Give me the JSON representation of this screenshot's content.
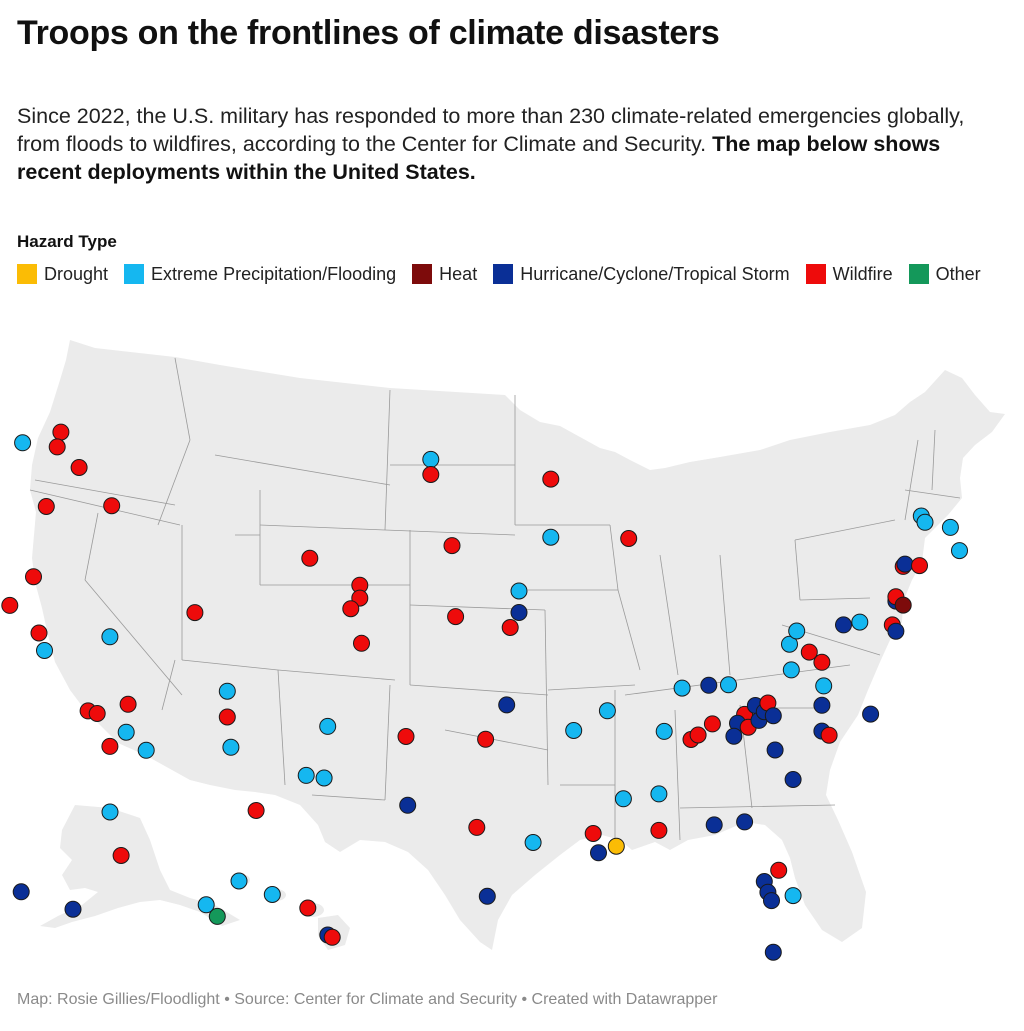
{
  "title": "Troops on the frontlines of climate disasters",
  "intro": {
    "text": "Since 2022, the U.S. military has responded to more than 230 climate-related emergencies globally, from floods to wildfires, according to the Center for Climate and Security. ",
    "bold": "The map below shows recent deployments within the United States."
  },
  "legend": {
    "title": "Hazard Type",
    "items": [
      {
        "key": "drought",
        "label": "Drought",
        "color": "#fbbc05"
      },
      {
        "key": "flood",
        "label": "Extreme Precipitation/Flooding",
        "color": "#15b7f0"
      },
      {
        "key": "heat",
        "label": "Heat",
        "color": "#7d0b0b"
      },
      {
        "key": "hurricane",
        "label": "Hurricane/Cyclone/Tropical Storm",
        "color": "#0a2f96"
      },
      {
        "key": "wildfire",
        "label": "Wildfire",
        "color": "#ee0b0b"
      },
      {
        "key": "other",
        "label": "Other",
        "color": "#14985a"
      }
    ]
  },
  "map": {
    "land_color": "#ebebeb",
    "border_color": "#9a9a9a",
    "points": [
      {
        "lon": -123.3,
        "lat": 48.2,
        "type": "flood"
      },
      {
        "lon": -121.2,
        "lat": 48.8,
        "type": "wildfire"
      },
      {
        "lon": -121.4,
        "lat": 48.1,
        "type": "wildfire"
      },
      {
        "lon": -120.2,
        "lat": 47.2,
        "type": "wildfire"
      },
      {
        "lon": -122.0,
        "lat": 45.3,
        "type": "wildfire"
      },
      {
        "lon": -118.4,
        "lat": 45.5,
        "type": "wildfire"
      },
      {
        "lon": -122.7,
        "lat": 42.0,
        "type": "wildfire"
      },
      {
        "lon": -124.0,
        "lat": 40.6,
        "type": "wildfire"
      },
      {
        "lon": -122.4,
        "lat": 39.4,
        "type": "wildfire"
      },
      {
        "lon": -122.1,
        "lat": 38.6,
        "type": "flood"
      },
      {
        "lon": -118.5,
        "lat": 39.4,
        "type": "flood"
      },
      {
        "lon": -119.7,
        "lat": 35.9,
        "type": "wildfire"
      },
      {
        "lon": -119.2,
        "lat": 35.8,
        "type": "wildfire"
      },
      {
        "lon": -117.5,
        "lat": 36.3,
        "type": "wildfire"
      },
      {
        "lon": -117.6,
        "lat": 35.0,
        "type": "flood"
      },
      {
        "lon": -118.5,
        "lat": 34.3,
        "type": "wildfire"
      },
      {
        "lon": -116.5,
        "lat": 34.2,
        "type": "flood"
      },
      {
        "lon": -112.0,
        "lat": 37.1,
        "type": "flood"
      },
      {
        "lon": -112.0,
        "lat": 35.9,
        "type": "wildfire"
      },
      {
        "lon": -111.8,
        "lat": 34.5,
        "type": "flood"
      },
      {
        "lon": -110.4,
        "lat": 31.6,
        "type": "wildfire"
      },
      {
        "lon": -113.8,
        "lat": 40.7,
        "type": "wildfire"
      },
      {
        "lon": -107.4,
        "lat": 43.4,
        "type": "wildfire"
      },
      {
        "lon": -104.6,
        "lat": 42.2,
        "type": "wildfire"
      },
      {
        "lon": -104.6,
        "lat": 41.6,
        "type": "wildfire"
      },
      {
        "lon": -105.1,
        "lat": 41.1,
        "type": "wildfire"
      },
      {
        "lon": -104.5,
        "lat": 39.5,
        "type": "wildfire"
      },
      {
        "lon": -100.6,
        "lat": 48.1,
        "type": "flood"
      },
      {
        "lon": -100.6,
        "lat": 47.4,
        "type": "wildfire"
      },
      {
        "lon": -99.4,
        "lat": 44.1,
        "type": "wildfire"
      },
      {
        "lon": -99.2,
        "lat": 40.8,
        "type": "wildfire"
      },
      {
        "lon": -95.6,
        "lat": 42.0,
        "type": "flood"
      },
      {
        "lon": -95.6,
        "lat": 41.0,
        "type": "hurricane"
      },
      {
        "lon": -96.1,
        "lat": 40.3,
        "type": "wildfire"
      },
      {
        "lon": -93.8,
        "lat": 47.2,
        "type": "wildfire"
      },
      {
        "lon": -93.8,
        "lat": 44.5,
        "type": "flood"
      },
      {
        "lon": -89.4,
        "lat": 44.4,
        "type": "wildfire"
      },
      {
        "lon": -106.4,
        "lat": 35.6,
        "type": "flood"
      },
      {
        "lon": -107.6,
        "lat": 33.3,
        "type": "flood"
      },
      {
        "lon": -106.6,
        "lat": 33.2,
        "type": "flood"
      },
      {
        "lon": -102.0,
        "lat": 35.2,
        "type": "wildfire"
      },
      {
        "lon": -97.5,
        "lat": 35.1,
        "type": "wildfire"
      },
      {
        "lon": -96.3,
        "lat": 36.7,
        "type": "hurricane"
      },
      {
        "lon": -101.9,
        "lat": 32.0,
        "type": "hurricane"
      },
      {
        "lon": -98.0,
        "lat": 31.0,
        "type": "wildfire"
      },
      {
        "lon": -94.8,
        "lat": 30.3,
        "type": "flood"
      },
      {
        "lon": -97.4,
        "lat": 27.8,
        "type": "hurricane"
      },
      {
        "lon": -92.5,
        "lat": 35.5,
        "type": "flood"
      },
      {
        "lon": -90.6,
        "lat": 36.4,
        "type": "flood"
      },
      {
        "lon": -91.4,
        "lat": 30.7,
        "type": "wildfire"
      },
      {
        "lon": -91.1,
        "lat": 29.8,
        "type": "hurricane"
      },
      {
        "lon": -90.1,
        "lat": 30.1,
        "type": "drought"
      },
      {
        "lon": -89.7,
        "lat": 32.3,
        "type": "flood"
      },
      {
        "lon": -87.7,
        "lat": 32.5,
        "type": "flood"
      },
      {
        "lon": -87.7,
        "lat": 30.8,
        "type": "wildfire"
      },
      {
        "lon": -87.4,
        "lat": 35.4,
        "type": "flood"
      },
      {
        "lon": -86.4,
        "lat": 37.4,
        "type": "flood"
      },
      {
        "lon": -84.9,
        "lat": 37.5,
        "type": "hurricane"
      },
      {
        "lon": -83.8,
        "lat": 37.5,
        "type": "flood"
      },
      {
        "lon": -82.9,
        "lat": 36.1,
        "type": "wildfire"
      },
      {
        "lon": -82.3,
        "lat": 36.5,
        "type": "hurricane"
      },
      {
        "lon": -83.3,
        "lat": 35.7,
        "type": "hurricane"
      },
      {
        "lon": -82.7,
        "lat": 35.5,
        "type": "wildfire"
      },
      {
        "lon": -82.1,
        "lat": 35.8,
        "type": "hurricane"
      },
      {
        "lon": -81.8,
        "lat": 36.2,
        "type": "hurricane"
      },
      {
        "lon": -81.6,
        "lat": 36.6,
        "type": "wildfire"
      },
      {
        "lon": -81.3,
        "lat": 36.0,
        "type": "hurricane"
      },
      {
        "lon": -85.9,
        "lat": 35.0,
        "type": "wildfire"
      },
      {
        "lon": -85.5,
        "lat": 35.2,
        "type": "wildfire"
      },
      {
        "lon": -84.7,
        "lat": 35.7,
        "type": "wildfire"
      },
      {
        "lon": -83.5,
        "lat": 35.1,
        "type": "hurricane"
      },
      {
        "lon": -81.2,
        "lat": 34.4,
        "type": "hurricane"
      },
      {
        "lon": -80.2,
        "lat": 33.0,
        "type": "hurricane"
      },
      {
        "lon": -78.6,
        "lat": 36.4,
        "type": "hurricane"
      },
      {
        "lon": -78.6,
        "lat": 35.2,
        "type": "hurricane"
      },
      {
        "lon": -78.2,
        "lat": 35.0,
        "type": "wildfire"
      },
      {
        "lon": -75.9,
        "lat": 35.9,
        "type": "hurricane"
      },
      {
        "lon": -84.6,
        "lat": 31.0,
        "type": "hurricane"
      },
      {
        "lon": -82.9,
        "lat": 31.1,
        "type": "hurricane"
      },
      {
        "lon": -81.0,
        "lat": 28.8,
        "type": "wildfire"
      },
      {
        "lon": -81.8,
        "lat": 28.3,
        "type": "hurricane"
      },
      {
        "lon": -81.6,
        "lat": 27.8,
        "type": "hurricane"
      },
      {
        "lon": -81.4,
        "lat": 27.4,
        "type": "hurricane"
      },
      {
        "lon": -80.2,
        "lat": 27.6,
        "type": "flood"
      },
      {
        "lon": -81.3,
        "lat": 25.0,
        "type": "hurricane"
      },
      {
        "lon": -80.4,
        "lat": 39.3,
        "type": "flood"
      },
      {
        "lon": -80.0,
        "lat": 39.9,
        "type": "flood"
      },
      {
        "lon": -80.3,
        "lat": 38.1,
        "type": "flood"
      },
      {
        "lon": -79.3,
        "lat": 38.9,
        "type": "wildfire"
      },
      {
        "lon": -78.6,
        "lat": 38.4,
        "type": "wildfire"
      },
      {
        "lon": -78.5,
        "lat": 37.3,
        "type": "flood"
      },
      {
        "lon": -77.4,
        "lat": 40.1,
        "type": "hurricane"
      },
      {
        "lon": -76.5,
        "lat": 40.2,
        "type": "flood"
      },
      {
        "lon": -74.7,
        "lat": 40.0,
        "type": "wildfire"
      },
      {
        "lon": -74.5,
        "lat": 39.7,
        "type": "hurricane"
      },
      {
        "lon": -74.5,
        "lat": 41.1,
        "type": "hurricane"
      },
      {
        "lon": -74.5,
        "lat": 41.3,
        "type": "wildfire"
      },
      {
        "lon": -74.1,
        "lat": 40.9,
        "type": "heat"
      },
      {
        "lon": -74.1,
        "lat": 42.7,
        "type": "wildfire"
      },
      {
        "lon": -74.0,
        "lat": 42.8,
        "type": "hurricane"
      },
      {
        "lon": -73.2,
        "lat": 42.7,
        "type": "wildfire"
      },
      {
        "lon": -73.1,
        "lat": 45.0,
        "type": "flood"
      },
      {
        "lon": -72.9,
        "lat": 44.7,
        "type": "flood"
      },
      {
        "lon": -71.5,
        "lat": 44.4,
        "type": "flood"
      },
      {
        "lon": -71.0,
        "lat": 43.3,
        "type": "flood"
      },
      {
        "lon": -150.0,
        "lat": 65.0,
        "type": "flood"
      },
      {
        "lon": -148.5,
        "lat": 62.0,
        "type": "wildfire"
      },
      {
        "lon": -162.0,
        "lat": 59.5,
        "type": "hurricane"
      },
      {
        "lon": -155.0,
        "lat": 58.3,
        "type": "hurricane"
      },
      {
        "lon": -137.0,
        "lat": 58.6,
        "type": "flood"
      },
      {
        "lon": -135.5,
        "lat": 57.8,
        "type": "other"
      },
      {
        "lon": -159.5,
        "lat": 22.0,
        "type": "flood"
      },
      {
        "lon": -158.0,
        "lat": 21.4,
        "type": "flood"
      },
      {
        "lon": -156.4,
        "lat": 20.8,
        "type": "wildfire"
      },
      {
        "lon": -155.5,
        "lat": 19.6,
        "type": "hurricane"
      },
      {
        "lon": -155.3,
        "lat": 19.5,
        "type": "wildfire"
      }
    ]
  },
  "footer": "Map: Rosie Gillies/Floodlight • Source: Center for Climate and Security • Created with Datawrapper"
}
